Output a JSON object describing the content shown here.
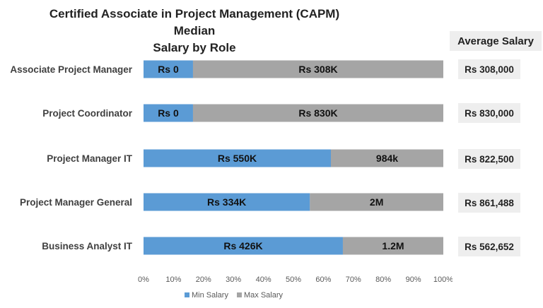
{
  "chart_data": {
    "type": "bar",
    "orientation": "horizontal",
    "stacked": "100%",
    "title": [
      "Certified Associate in Project Management (CAPM) Median",
      "Salary by Role"
    ],
    "categories": [
      "Associate Project Manager",
      "Project Coordinator",
      "Project Manager IT",
      "Project Manager General",
      "Business Analyst IT"
    ],
    "series": [
      {
        "name": "Min Salary",
        "color": "#5b9bd5",
        "values": [
          0.165,
          0.165,
          0.625,
          0.555,
          0.665
        ],
        "labels": [
          "Rs 0",
          "Rs 0",
          "Rs 550K",
          "Rs 334K",
          "Rs 426K"
        ]
      },
      {
        "name": "Max Salary",
        "color": "#a5a5a5",
        "values": [
          0.835,
          0.835,
          0.375,
          0.445,
          0.335
        ],
        "labels": [
          "Rs 308K",
          "Rs 830K",
          "984k",
          "2M",
          "1.2M"
        ]
      }
    ],
    "xlim": [
      0,
      1
    ],
    "x_ticks": [
      "0%",
      "10%",
      "20%",
      "30%",
      "40%",
      "50%",
      "60%",
      "70%",
      "80%",
      "90%",
      "100%"
    ],
    "grid": false,
    "legend_position": "bottom"
  },
  "average_salary": {
    "header": "Average Salary",
    "values": [
      "Rs 308,000",
      "Rs 830,000",
      "Rs 822,500",
      "Rs 861,488",
      "Rs 562,652"
    ]
  }
}
